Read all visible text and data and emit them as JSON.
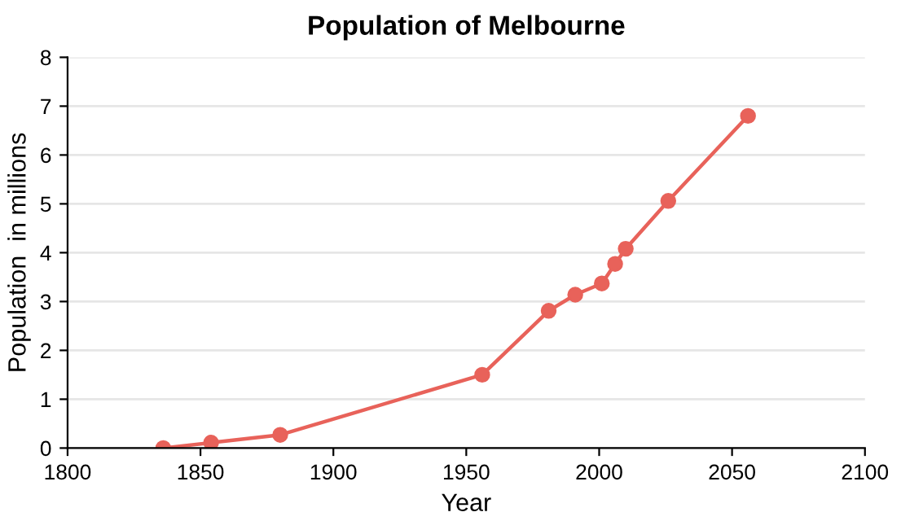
{
  "chart_data": {
    "type": "line",
    "title": "Population of Melbourne",
    "xlabel": "Year",
    "ylabel": "Population  in millions",
    "x": [
      1836,
      1854,
      1880,
      1956,
      1981,
      1991,
      2001,
      2006,
      2010,
      2026,
      2056
    ],
    "series": [
      {
        "color": "#e8625a",
        "values": [
          0,
          0.11,
          0.27,
          1.5,
          2.81,
          3.14,
          3.37,
          3.77,
          4.08,
          5.06,
          6.8
        ]
      }
    ],
    "xlim": [
      1800,
      2100
    ],
    "xticks": [
      1800,
      1850,
      1900,
      1950,
      2000,
      2050,
      2100
    ],
    "ylim": [
      0,
      8
    ],
    "yticks": [
      0,
      1,
      2,
      3,
      4,
      5,
      6,
      7,
      8
    ],
    "grid": "y",
    "marker": "circle",
    "line_style": "solid",
    "legend": false
  }
}
